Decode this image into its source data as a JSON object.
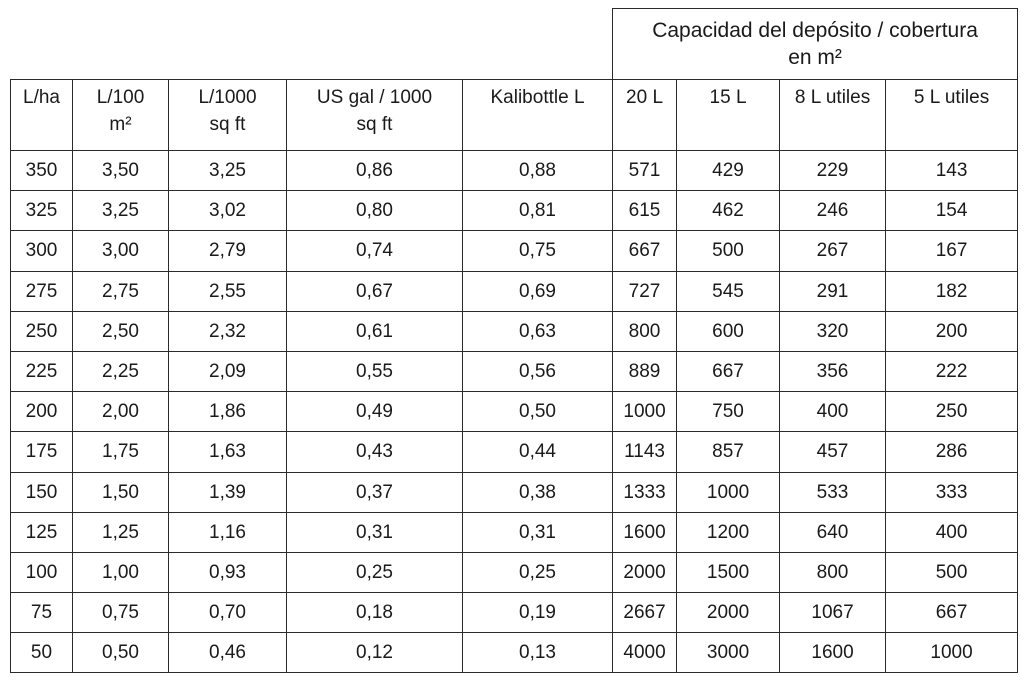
{
  "table": {
    "group_header": {
      "line1": "Capacidad del depósito / cobertura",
      "line2": "en m²"
    },
    "columns": [
      {
        "line1": "L/ha",
        "line2": ""
      },
      {
        "line1": "L/100",
        "line2": "m²"
      },
      {
        "line1": "L/1000",
        "line2": "sq ft"
      },
      {
        "line1": "US gal / 1000",
        "line2": "sq ft"
      },
      {
        "line1": "Kalibottle L",
        "line2": ""
      },
      {
        "line1": "20 L",
        "line2": ""
      },
      {
        "line1": "15 L",
        "line2": ""
      },
      {
        "line1": "8 L utiles",
        "line2": ""
      },
      {
        "line1": "5 L utiles",
        "line2": ""
      }
    ],
    "rows": [
      [
        "350",
        "3,50",
        "3,25",
        "0,86",
        "0,88",
        "571",
        "429",
        "229",
        "143"
      ],
      [
        "325",
        "3,25",
        "3,02",
        "0,80",
        "0,81",
        "615",
        "462",
        "246",
        "154"
      ],
      [
        "300",
        "3,00",
        "2,79",
        "0,74",
        "0,75",
        "667",
        "500",
        "267",
        "167"
      ],
      [
        "275",
        "2,75",
        "2,55",
        "0,67",
        "0,69",
        "727",
        "545",
        "291",
        "182"
      ],
      [
        "250",
        "2,50",
        "2,32",
        "0,61",
        "0,63",
        "800",
        "600",
        "320",
        "200"
      ],
      [
        "225",
        "2,25",
        "2,09",
        "0,55",
        "0,56",
        "889",
        "667",
        "356",
        "222"
      ],
      [
        "200",
        "2,00",
        "1,86",
        "0,49",
        "0,50",
        "1000",
        "750",
        "400",
        "250"
      ],
      [
        "175",
        "1,75",
        "1,63",
        "0,43",
        "0,44",
        "1143",
        "857",
        "457",
        "286"
      ],
      [
        "150",
        "1,50",
        "1,39",
        "0,37",
        "0,38",
        "1333",
        "1000",
        "533",
        "333"
      ],
      [
        "125",
        "1,25",
        "1,16",
        "0,31",
        "0,31",
        "1600",
        "1200",
        "640",
        "400"
      ],
      [
        "100",
        "1,00",
        "0,93",
        "0,25",
        "0,25",
        "2000",
        "1500",
        "800",
        "500"
      ],
      [
        "75",
        "0,75",
        "0,70",
        "0,18",
        "0,19",
        "2667",
        "2000",
        "1067",
        "667"
      ],
      [
        "50",
        "0,50",
        "0,46",
        "0,12",
        "0,13",
        "4000",
        "3000",
        "1600",
        "1000"
      ]
    ]
  }
}
